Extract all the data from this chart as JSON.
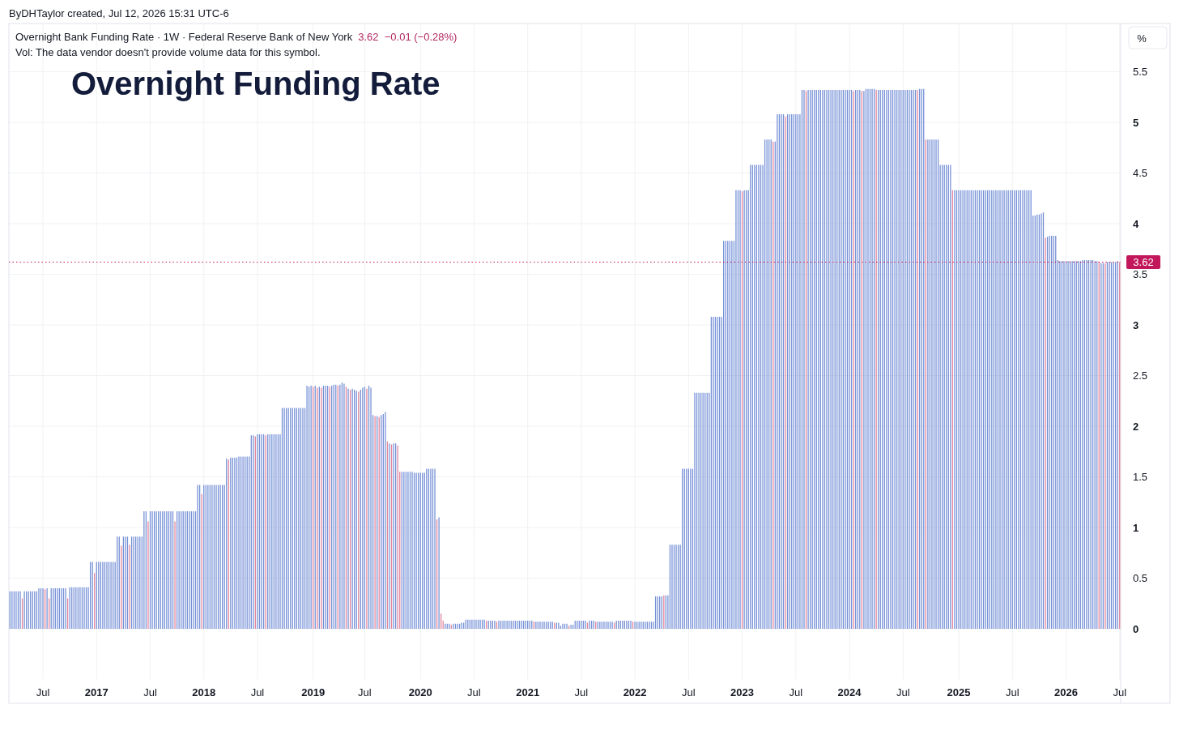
{
  "chart_data": {
    "type": "bar",
    "title": "Overnight Funding Rate",
    "subtitle": "Overnight Bank Funding Rate · 1W · Federal Reserve Bank of New York",
    "ylabel": "%",
    "annotations": [
      "ByDHTaylor created, Jul 12, 2026 15:31 UTC-6",
      "3.62  −0.01 (−0.28%)",
      "Vol: The data vendor doesn't provide volume data for this symbol."
    ],
    "categories": [
      null,
      null,
      null,
      null,
      null,
      null,
      null,
      null,
      null,
      null,
      null,
      null,
      null,
      null,
      null,
      null,
      "Jul",
      null,
      null,
      null,
      null,
      null,
      null,
      null,
      null,
      null,
      null,
      null,
      null,
      null,
      null,
      null,
      null,
      null,
      null,
      null,
      null,
      null,
      null,
      null,
      null,
      null,
      "2017",
      null,
      null,
      null,
      null,
      null,
      null,
      null,
      null,
      null,
      null,
      null,
      null,
      null,
      null,
      null,
      null,
      null,
      null,
      null,
      null,
      null,
      null,
      null,
      null,
      null,
      "Jul",
      null,
      null,
      null,
      null,
      null,
      null,
      null,
      null,
      null,
      null,
      null,
      null,
      null,
      null,
      null,
      null,
      null,
      null,
      null,
      null,
      null,
      null,
      null,
      null,
      null,
      "2018",
      null,
      null,
      null,
      null,
      null,
      null,
      null,
      null,
      null,
      null,
      null,
      null,
      null,
      null,
      null,
      null,
      null,
      null,
      null,
      null,
      null,
      null,
      null,
      null,
      null,
      "Jul",
      null,
      null,
      null,
      null,
      null,
      null,
      null,
      null,
      null,
      null,
      null,
      null,
      null,
      null,
      null,
      null,
      null,
      null,
      null,
      null,
      null,
      null,
      null,
      null,
      null,
      null,
      "2019",
      null,
      null,
      null,
      null,
      null,
      null,
      null,
      null,
      null,
      null,
      null,
      null,
      null,
      null,
      null,
      null,
      null,
      null,
      null,
      null,
      null,
      null,
      null,
      null,
      "Jul",
      null,
      null,
      null,
      null,
      null,
      null,
      null,
      null,
      null,
      null,
      null,
      null,
      null,
      null,
      null,
      null,
      null,
      null,
      null,
      null,
      null,
      null,
      null,
      null,
      null,
      null,
      "2020",
      null,
      null,
      null,
      null,
      null,
      null,
      null,
      null,
      null,
      null,
      null,
      null,
      null,
      null,
      null,
      null,
      null,
      null,
      null,
      null,
      null,
      null,
      null,
      null,
      null,
      "Jul",
      null,
      null,
      null,
      null,
      null,
      null,
      null,
      null,
      null,
      null,
      null,
      null,
      null,
      null,
      null,
      null,
      null,
      null,
      null,
      null,
      null,
      null,
      null,
      null,
      null,
      "2021",
      null,
      null,
      null,
      null,
      null,
      null,
      null,
      null,
      null,
      null,
      null,
      null,
      null,
      null,
      null,
      null,
      null,
      null,
      null,
      null,
      null,
      null,
      null,
      null,
      null,
      "Jul",
      null,
      null,
      null,
      null,
      null,
      null,
      null,
      null,
      null,
      null,
      null,
      null,
      null,
      null,
      null,
      null,
      null,
      null,
      null,
      null,
      null,
      null,
      null,
      null,
      null,
      "2022",
      null,
      null,
      null,
      null,
      null,
      null,
      null,
      null,
      null,
      null,
      null,
      null,
      null,
      null,
      null,
      null,
      null,
      null,
      null,
      null,
      null,
      null,
      null,
      null,
      null,
      "Jul",
      null,
      null,
      null,
      null,
      null,
      null,
      null,
      null,
      null,
      null,
      null,
      null,
      null,
      null,
      null,
      null,
      null,
      null,
      null,
      null,
      null,
      null,
      null,
      null,
      null,
      "2023",
      null,
      null,
      null,
      null,
      null,
      null,
      null,
      null,
      null,
      null,
      null,
      null,
      null,
      null,
      null,
      null,
      null,
      null,
      null,
      null,
      null,
      null,
      null,
      null,
      null,
      "Jul",
      null,
      null,
      null,
      null,
      null,
      null,
      null,
      null,
      null,
      null,
      null,
      null,
      null,
      null,
      null,
      null,
      null,
      null,
      null,
      null,
      null,
      null,
      null,
      null,
      null,
      "2024",
      null,
      null,
      null,
      null,
      null,
      null,
      null,
      null,
      null,
      null,
      null,
      null,
      null,
      null,
      null,
      null,
      null,
      null,
      null,
      null,
      null,
      null,
      null,
      null,
      null,
      "Jul",
      null,
      null,
      null,
      null,
      null,
      null,
      null,
      null,
      null,
      null,
      null,
      null,
      null,
      null,
      null,
      null,
      null,
      null,
      null,
      null,
      null,
      null,
      null,
      null,
      null,
      null,
      "2025",
      null,
      null,
      null,
      null,
      null,
      null,
      null,
      null,
      null,
      null,
      null,
      null,
      null,
      null,
      null,
      null,
      null,
      null,
      null,
      null,
      null,
      null,
      null,
      null,
      null,
      "Jul",
      null,
      null,
      null,
      null,
      null,
      null,
      null,
      null,
      null,
      null,
      null,
      null,
      null,
      null,
      null,
      null,
      null,
      null,
      null,
      null,
      null,
      null,
      null,
      null,
      null,
      "2026",
      null,
      null,
      null,
      null,
      null,
      null,
      null,
      null,
      null,
      null,
      null,
      null,
      null,
      null,
      null,
      null,
      null,
      null,
      null,
      null,
      null,
      null,
      null,
      null,
      null,
      "Jul"
    ],
    "values": [
      0.37,
      0.37,
      0.37,
      0.37,
      0.37,
      0.37,
      0.3,
      0.37,
      0.37,
      0.37,
      0.37,
      0.37,
      0.37,
      0.37,
      0.4,
      0.4,
      0.4,
      0.39,
      0.4,
      0.3,
      0.4,
      0.4,
      0.4,
      0.4,
      0.4,
      0.4,
      0.4,
      0.4,
      0.3,
      0.41,
      0.41,
      0.41,
      0.41,
      0.41,
      0.41,
      0.41,
      0.41,
      0.41,
      0.41,
      0.66,
      0.66,
      0.55,
      0.66,
      0.66,
      0.66,
      0.66,
      0.66,
      0.66,
      0.66,
      0.66,
      0.66,
      0.66,
      0.91,
      0.91,
      0.82,
      0.91,
      0.91,
      0.91,
      0.83,
      0.91,
      0.91,
      0.91,
      0.91,
      0.91,
      0.91,
      1.16,
      1.16,
      1.06,
      1.16,
      1.16,
      1.16,
      1.16,
      1.16,
      1.16,
      1.16,
      1.16,
      1.16,
      1.16,
      1.16,
      1.16,
      1.06,
      1.16,
      1.16,
      1.16,
      1.16,
      1.16,
      1.16,
      1.16,
      1.16,
      1.16,
      1.16,
      1.42,
      1.42,
      1.33,
      1.42,
      1.42,
      1.42,
      1.42,
      1.42,
      1.42,
      1.42,
      1.42,
      1.42,
      1.42,
      1.42,
      1.68,
      1.67,
      1.69,
      1.69,
      1.69,
      1.69,
      1.7,
      1.7,
      1.7,
      1.7,
      1.7,
      1.7,
      1.91,
      1.91,
      1.9,
      1.92,
      1.92,
      1.92,
      1.92,
      1.91,
      1.92,
      1.92,
      1.92,
      1.92,
      1.92,
      1.92,
      1.92,
      2.18,
      2.18,
      2.18,
      2.18,
      2.18,
      2.18,
      2.18,
      2.18,
      2.18,
      2.18,
      2.18,
      2.18,
      2.4,
      2.39,
      2.4,
      2.39,
      2.4,
      2.38,
      2.39,
      2.38,
      2.4,
      2.4,
      2.4,
      2.39,
      2.4,
      2.41,
      2.41,
      2.4,
      2.41,
      2.43,
      2.42,
      2.39,
      2.37,
      2.36,
      2.37,
      2.36,
      2.35,
      2.34,
      2.36,
      2.38,
      2.39,
      2.37,
      2.4,
      2.38,
      2.11,
      2.1,
      2.1,
      2.09,
      2.11,
      2.12,
      2.14,
      1.85,
      1.83,
      1.82,
      1.83,
      1.83,
      1.81,
      1.55,
      1.55,
      1.55,
      1.55,
      1.55,
      1.55,
      1.55,
      1.54,
      1.54,
      1.54,
      1.54,
      1.54,
      1.54,
      1.58,
      1.58,
      1.58,
      1.58,
      1.58,
      1.08,
      1.1,
      0.15,
      0.08,
      0.05,
      0.05,
      0.05,
      0.04,
      0.05,
      0.05,
      0.05,
      0.05,
      0.06,
      0.06,
      0.09,
      0.09,
      0.09,
      0.09,
      0.09,
      0.09,
      0.09,
      0.09,
      0.09,
      0.09,
      0.08,
      0.08,
      0.08,
      0.08,
      0.08,
      0.07,
      0.08,
      0.08,
      0.08,
      0.08,
      0.08,
      0.08,
      0.08,
      0.08,
      0.08,
      0.08,
      0.08,
      0.08,
      0.08,
      0.08,
      0.08,
      0.08,
      0.08,
      0.07,
      0.07,
      0.07,
      0.07,
      0.07,
      0.07,
      0.07,
      0.07,
      0.07,
      0.07,
      0.06,
      0.06,
      0.06,
      0.03,
      0.05,
      0.05,
      0.05,
      0.03,
      0.04,
      0.04,
      0.08,
      0.08,
      0.08,
      0.08,
      0.08,
      0.08,
      0.06,
      0.08,
      0.08,
      0.08,
      0.07,
      0.07,
      0.07,
      0.07,
      0.07,
      0.07,
      0.07,
      0.07,
      0.07,
      0.06,
      0.08,
      0.08,
      0.08,
      0.08,
      0.08,
      0.08,
      0.08,
      0.08,
      0.07,
      0.07,
      0.07,
      0.07,
      0.07,
      0.07,
      0.07,
      0.07,
      0.07,
      0.07,
      0.07,
      0.32,
      0.32,
      0.32,
      0.32,
      0.33,
      0.33,
      0.33,
      0.83,
      0.83,
      0.83,
      0.83,
      0.83,
      0.83,
      1.58,
      1.58,
      1.58,
      1.58,
      1.58,
      1.58,
      2.33,
      2.33,
      2.33,
      2.33,
      2.33,
      2.33,
      2.33,
      2.33,
      3.08,
      3.08,
      3.08,
      3.08,
      3.08,
      3.08,
      3.83,
      3.83,
      3.83,
      3.83,
      3.83,
      3.83,
      4.33,
      4.33,
      4.33,
      4.32,
      4.33,
      4.33,
      4.33,
      4.58,
      4.58,
      4.58,
      4.58,
      4.58,
      4.58,
      4.58,
      4.83,
      4.83,
      4.83,
      4.83,
      4.81,
      4.81,
      5.08,
      5.08,
      5.08,
      5.08,
      5.06,
      5.08,
      5.08,
      5.08,
      5.08,
      5.08,
      5.08,
      5.08,
      5.32,
      5.32,
      5.31,
      5.32,
      5.32,
      5.32,
      5.32,
      5.32,
      5.32,
      5.32,
      5.32,
      5.32,
      5.32,
      5.32,
      5.32,
      5.32,
      5.32,
      5.32,
      5.32,
      5.32,
      5.32,
      5.32,
      5.32,
      5.32,
      5.32,
      5.31,
      5.32,
      5.32,
      5.32,
      5.31,
      5.31,
      5.33,
      5.33,
      5.33,
      5.33,
      5.33,
      5.32,
      5.32,
      5.32,
      5.32,
      5.32,
      5.32,
      5.32,
      5.32,
      5.32,
      5.32,
      5.32,
      5.32,
      5.32,
      5.32,
      5.32,
      5.32,
      5.32,
      5.32,
      5.32,
      5.32,
      5.32,
      5.33,
      5.33,
      5.33,
      4.83,
      4.83,
      4.83,
      4.83,
      4.83,
      4.83,
      4.83,
      4.58,
      4.58,
      4.58,
      4.58,
      4.58,
      4.58,
      4.33,
      4.33,
      4.33,
      4.33,
      4.33,
      4.33,
      4.33,
      4.33,
      4.33,
      4.33,
      4.33,
      4.33,
      4.33,
      4.33,
      4.33,
      4.33,
      4.33,
      4.33,
      4.33,
      4.33,
      4.33,
      4.33,
      4.33,
      4.33,
      4.33,
      4.33,
      4.33,
      4.33,
      4.33,
      4.33,
      4.33,
      4.33,
      4.33,
      4.33,
      4.33,
      4.33,
      4.33,
      4.33,
      4.33,
      4.08,
      4.08,
      4.09,
      4.09,
      4.1,
      4.11,
      3.86,
      3.87,
      3.88,
      3.88,
      3.88,
      3.88,
      3.64,
      3.63,
      3.63,
      3.63,
      3.63,
      3.63,
      3.63,
      3.63,
      3.63,
      3.63,
      3.63,
      3.63,
      3.64,
      3.64,
      3.64,
      3.64,
      3.64,
      3.64,
      3.63,
      3.63,
      3.62,
      3.61,
      3.61,
      3.61,
      3.62,
      3.62,
      3.62,
      3.62,
      3.62,
      3.63,
      3.62
    ],
    "colors": [
      "#7590d6",
      "#7590d6",
      "#7590d6",
      "#7590d6",
      "#7590d6",
      "#7590d6",
      "#e0849b",
      "#7590d6",
      "#7590d6",
      "#7590d6",
      "#7590d6",
      "#7590d6",
      "#7590d6",
      "#7590d6",
      "#7590d6",
      "#7590d6",
      "#7590d6",
      "#e0849b",
      "#7590d6",
      "#e0849b",
      "#7590d6",
      "#7590d6",
      "#7590d6",
      "#7590d6",
      "#7590d6",
      "#7590d6",
      "#7590d6",
      "#7590d6",
      "#e0849b",
      "#7590d6",
      "#7590d6",
      "#7590d6",
      "#7590d6",
      "#7590d6",
      "#7590d6",
      "#7590d6",
      "#7590d6",
      "#7590d6",
      "#7590d6",
      "#7590d6",
      "#7590d6",
      "#e0849b",
      "#7590d6",
      "#7590d6",
      "#7590d6",
      "#7590d6",
      "#7590d6",
      "#7590d6",
      "#7590d6",
      "#7590d6",
      "#7590d6",
      "#7590d6",
      "#7590d6",
      "#7590d6",
      "#e0849b",
      "#7590d6",
      "#7590d6",
      "#7590d6",
      "#e0849b",
      "#7590d6",
      "#7590d6",
      "#7590d6",
      "#7590d6",
      "#7590d6",
      "#7590d6",
      "#7590d6",
      "#7590d6",
      "#e0849b",
      "#7590d6",
      "#7590d6",
      "#7590d6",
      "#7590d6",
      "#7590d6",
      "#7590d6",
      "#7590d6",
      "#7590d6",
      "#7590d6",
      "#7590d6",
      "#7590d6",
      "#7590d6",
      "#e0849b",
      "#7590d6",
      "#7590d6",
      "#7590d6",
      "#7590d6",
      "#7590d6",
      "#7590d6",
      "#7590d6",
      "#7590d6",
      "#7590d6",
      "#7590d6",
      "#7590d6",
      "#7590d6",
      "#e0849b",
      "#7590d6",
      "#7590d6",
      "#7590d6",
      "#7590d6",
      "#7590d6",
      "#7590d6",
      "#7590d6",
      "#7590d6",
      "#7590d6",
      "#7590d6",
      "#7590d6",
      "#7590d6",
      "#e0849b",
      "#7590d6",
      "#7590d6",
      "#7590d6",
      "#7590d6",
      "#7590d6",
      "#7590d6",
      "#7590d6",
      "#7590d6",
      "#7590d6",
      "#7590d6",
      "#7590d6",
      "#7590d6",
      "#e0849b",
      "#7590d6",
      "#7590d6",
      "#7590d6",
      "#7590d6",
      "#e0849b",
      "#7590d6",
      "#7590d6",
      "#7590d6",
      "#7590d6",
      "#7590d6",
      "#7590d6",
      "#7590d6",
      "#7590d6",
      "#7590d6",
      "#7590d6",
      "#7590d6",
      "#7590d6",
      "#7590d6",
      "#7590d6",
      "#7590d6",
      "#7590d6",
      "#7590d6",
      "#7590d6",
      "#7590d6",
      "#7590d6",
      "#7590d6",
      "#7590d6",
      "#e0849b",
      "#7590d6",
      "#e0849b",
      "#7590d6",
      "#e0849b",
      "#7590d6",
      "#7590d6",
      "#7590d6",
      "#e0849b",
      "#7590d6",
      "#7590d6",
      "#7590d6",
      "#e0849b",
      "#7590d6",
      "#7590d6",
      "#7590d6",
      "#e0849b",
      "#7590d6",
      "#e0849b",
      "#7590d6",
      "#7590d6",
      "#7590d6",
      "#e0849b",
      "#7590d6",
      "#7590d6",
      "#7590d6",
      "#e0849b",
      "#7590d6",
      "#7590d6",
      "#7590d6",
      "#e0849b",
      "#7590d6",
      "#e0849b",
      "#7590d6",
      "#7590d6",
      "#7590d6",
      "#e0849b",
      "#7590d6",
      "#e0849b",
      "#7590d6",
      "#7590d6",
      "#e0849b",
      "#e0849b",
      "#7590d6",
      "#7590d6",
      "#7590d6",
      "#7590d6",
      "#7590d6",
      "#7590d6",
      "#7590d6",
      "#7590d6",
      "#7590d6",
      "#7590d6",
      "#7590d6",
      "#7590d6",
      "#7590d6",
      "#7590d6",
      "#7590d6",
      "#7590d6",
      "#7590d6",
      "#e0849b",
      "#7590d6",
      "#e0849b",
      "#e0849b",
      "#7590d6",
      "#7590d6",
      "#7590d6",
      "#e0849b",
      "#7590d6",
      "#7590d6",
      "#7590d6",
      "#7590d6",
      "#7590d6",
      "#7590d6",
      "#7590d6",
      "#7590d6",
      "#7590d6",
      "#7590d6",
      "#7590d6",
      "#7590d6",
      "#7590d6",
      "#7590d6",
      "#7590d6",
      "#7590d6",
      "#e0849b",
      "#7590d6",
      "#7590d6",
      "#7590d6",
      "#7590d6",
      "#e0849b",
      "#7590d6",
      "#7590d6",
      "#7590d6",
      "#7590d6",
      "#7590d6",
      "#7590d6",
      "#7590d6",
      "#7590d6",
      "#7590d6",
      "#7590d6",
      "#7590d6",
      "#7590d6",
      "#7590d6",
      "#7590d6",
      "#7590d6",
      "#7590d6",
      "#7590d6",
      "#e0849b",
      "#7590d6",
      "#7590d6",
      "#7590d6",
      "#7590d6",
      "#7590d6",
      "#7590d6",
      "#7590d6",
      "#7590d6",
      "#7590d6",
      "#e0849b",
      "#7590d6",
      "#7590d6",
      "#7590d6",
      "#7590d6",
      "#7590d6",
      "#7590d6",
      "#e0849b",
      "#7590d6",
      "#7590d6",
      "#7590d6",
      "#7590d6",
      "#7590d6",
      "#7590d6",
      "#7590d6",
      "#7590d6",
      "#e0849b",
      "#7590d6",
      "#7590d6",
      "#7590d6",
      "#e0849b",
      "#7590d6",
      "#7590d6",
      "#7590d6",
      "#7590d6",
      "#7590d6",
      "#7590d6",
      "#7590d6",
      "#7590d6",
      "#e0849b",
      "#7590d6",
      "#7590d6",
      "#7590d6",
      "#7590d6",
      "#7590d6",
      "#7590d6",
      "#7590d6",
      "#7590d6",
      "#e0849b",
      "#7590d6",
      "#7590d6",
      "#7590d6",
      "#7590d6",
      "#7590d6",
      "#7590d6",
      "#7590d6",
      "#7590d6",
      "#7590d6",
      "#7590d6",
      "#7590d6",
      "#7590d6",
      "#7590d6",
      "#7590d6",
      "#e0849b",
      "#7590d6",
      "#7590d6",
      "#7590d6",
      "#7590d6",
      "#7590d6",
      "#7590d6",
      "#7590d6",
      "#7590d6",
      "#7590d6",
      "#7590d6",
      "#7590d6",
      "#7590d6",
      "#7590d6",
      "#7590d6",
      "#7590d6",
      "#7590d6",
      "#7590d6",
      "#7590d6",
      "#7590d6",
      "#7590d6",
      "#7590d6",
      "#7590d6",
      "#7590d6",
      "#7590d6",
      "#7590d6",
      "#7590d6",
      "#7590d6",
      "#7590d6",
      "#7590d6",
      "#7590d6",
      "#7590d6",
      "#7590d6",
      "#7590d6",
      "#7590d6",
      "#7590d6",
      "#7590d6",
      "#7590d6",
      "#e0849b",
      "#7590d6",
      "#7590d6",
      "#7590d6",
      "#7590d6",
      "#7590d6",
      "#7590d6",
      "#7590d6",
      "#7590d6",
      "#7590d6",
      "#7590d6",
      "#7590d6",
      "#7590d6",
      "#7590d6",
      "#7590d6",
      "#e0849b",
      "#7590d6",
      "#7590d6",
      "#7590d6",
      "#7590d6",
      "#7590d6",
      "#e0849b",
      "#7590d6",
      "#7590d6",
      "#7590d6",
      "#7590d6",
      "#7590d6",
      "#7590d6",
      "#7590d6",
      "#7590d6",
      "#7590d6",
      "#e0849b",
      "#7590d6",
      "#7590d6",
      "#7590d6",
      "#7590d6",
      "#7590d6",
      "#7590d6",
      "#7590d6",
      "#7590d6",
      "#7590d6",
      "#7590d6",
      "#7590d6",
      "#7590d6",
      "#7590d6",
      "#7590d6",
      "#7590d6",
      "#7590d6",
      "#7590d6",
      "#7590d6",
      "#7590d6",
      "#7590d6",
      "#7590d6",
      "#7590d6",
      "#e0849b",
      "#7590d6",
      "#7590d6",
      "#7590d6",
      "#e0849b",
      "#7590d6",
      "#7590d6",
      "#7590d6",
      "#7590d6",
      "#7590d6",
      "#7590d6",
      "#e0849b",
      "#7590d6",
      "#7590d6",
      "#7590d6",
      "#7590d6",
      "#7590d6",
      "#7590d6",
      "#7590d6",
      "#7590d6",
      "#7590d6",
      "#7590d6",
      "#7590d6",
      "#7590d6",
      "#7590d6",
      "#7590d6",
      "#7590d6",
      "#7590d6",
      "#7590d6",
      "#7590d6",
      "#7590d6",
      "#e0849b",
      "#7590d6",
      "#7590d6",
      "#7590d6",
      "#e0849b",
      "#7590d6",
      "#7590d6",
      "#7590d6",
      "#7590d6",
      "#7590d6",
      "#7590d6",
      "#7590d6",
      "#7590d6",
      "#7590d6",
      "#7590d6",
      "#7590d6",
      "#7590d6",
      "#e0849b",
      "#7590d6",
      "#7590d6",
      "#7590d6",
      "#7590d6",
      "#7590d6",
      "#7590d6",
      "#7590d6",
      "#7590d6",
      "#7590d6",
      "#7590d6",
      "#7590d6",
      "#7590d6",
      "#7590d6",
      "#7590d6",
      "#7590d6",
      "#7590d6",
      "#7590d6",
      "#7590d6",
      "#7590d6",
      "#7590d6",
      "#7590d6",
      "#7590d6",
      "#7590d6",
      "#7590d6",
      "#7590d6",
      "#7590d6",
      "#7590d6",
      "#7590d6",
      "#7590d6",
      "#7590d6",
      "#7590d6",
      "#7590d6",
      "#7590d6",
      "#7590d6",
      "#7590d6",
      "#7590d6",
      "#7590d6",
      "#7590d6",
      "#7590d6",
      "#7590d6",
      "#7590d6",
      "#7590d6",
      "#7590d6",
      "#7590d6",
      "#e0849b",
      "#7590d6",
      "#7590d6",
      "#7590d6",
      "#7590d6",
      "#7590d6",
      "#7590d6",
      "#7590d6",
      "#7590d6",
      "#7590d6",
      "#7590d6",
      "#7590d6",
      "#7590d6",
      "#7590d6",
      "#7590d6",
      "#7590d6",
      "#7590d6",
      "#7590d6",
      "#7590d6",
      "#7590d6",
      "#7590d6",
      "#7590d6",
      "#7590d6",
      "#7590d6",
      "#7590d6",
      "#7590d6",
      "#e0849b",
      "#7590d6",
      "#7590d6",
      "#e0849b",
      "#7590d6",
      "#7590d6",
      "#7590d6",
      "#7590d6",
      "#7590d6",
      "#7590d6",
      "#e0849b"
    ],
    "ylim": [
      -0.5,
      5.97
    ],
    "yticks": [
      0,
      0.5,
      1,
      1.5,
      2,
      2.5,
      3,
      3.5,
      4,
      4.5,
      5,
      5.5
    ],
    "grid": true,
    "ref_lines": [
      {
        "axis": "y",
        "value": 3.62,
        "label": "3.62",
        "color": "#c2185b",
        "line_style": "dotted"
      }
    ]
  }
}
